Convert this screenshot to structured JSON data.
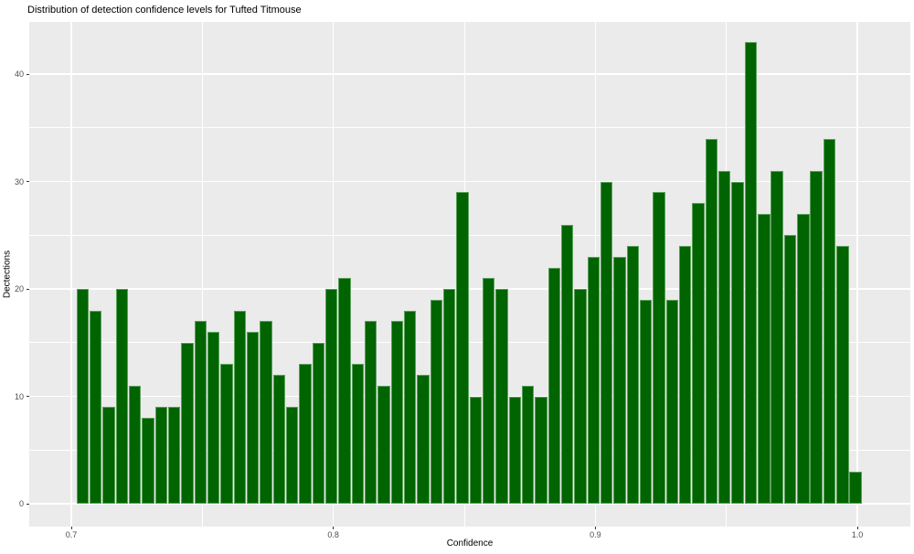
{
  "figure": {
    "title": "Distribution of detection confidence levels for Tufted Titmouse",
    "background_color": "#FFFFFF",
    "panel_background_color": "#EBEBEB",
    "gridline_color": "#FFFFFF",
    "tick_label_color": "#4D4D4D",
    "bar_fill_color": "#006400",
    "bar_edge_color": "#5DA05D"
  },
  "chart_data": {
    "type": "bar",
    "subtype": "histogram",
    "title": "Distribution of detection confidence levels for Tufted Titmouse",
    "xlabel": "Confidence",
    "ylabel": "Dectections",
    "x_tick_labels": [
      "0.7",
      "0.8",
      "0.9",
      "1.0"
    ],
    "x_tick_values": [
      0.7,
      0.8,
      0.9,
      1.0
    ],
    "x_minor_tick_values": [
      0.75,
      0.85,
      0.95
    ],
    "y_tick_labels": [
      "0",
      "10",
      "20",
      "30",
      "40"
    ],
    "y_tick_values": [
      0,
      10,
      20,
      30,
      40
    ],
    "y_minor_tick_values": [
      5,
      15,
      25,
      35
    ],
    "xlim": [
      0.685,
      1.021
    ],
    "ylim": [
      -2.15,
      45.15
    ],
    "bin_start": 0.702,
    "bin_width": 0.005,
    "values": [
      20,
      18,
      9,
      20,
      11,
      8,
      9,
      9,
      15,
      17,
      16,
      13,
      18,
      16,
      17,
      12,
      9,
      13,
      15,
      20,
      21,
      13,
      17,
      11,
      17,
      18,
      12,
      19,
      20,
      29,
      10,
      21,
      20,
      10,
      11,
      10,
      22,
      26,
      20,
      23,
      30,
      23,
      24,
      19,
      29,
      19,
      24,
      28,
      34,
      31,
      30,
      43,
      27,
      31,
      25,
      27,
      31,
      34,
      24,
      3
    ],
    "grid": "major-and-minor",
    "legend": "none"
  }
}
